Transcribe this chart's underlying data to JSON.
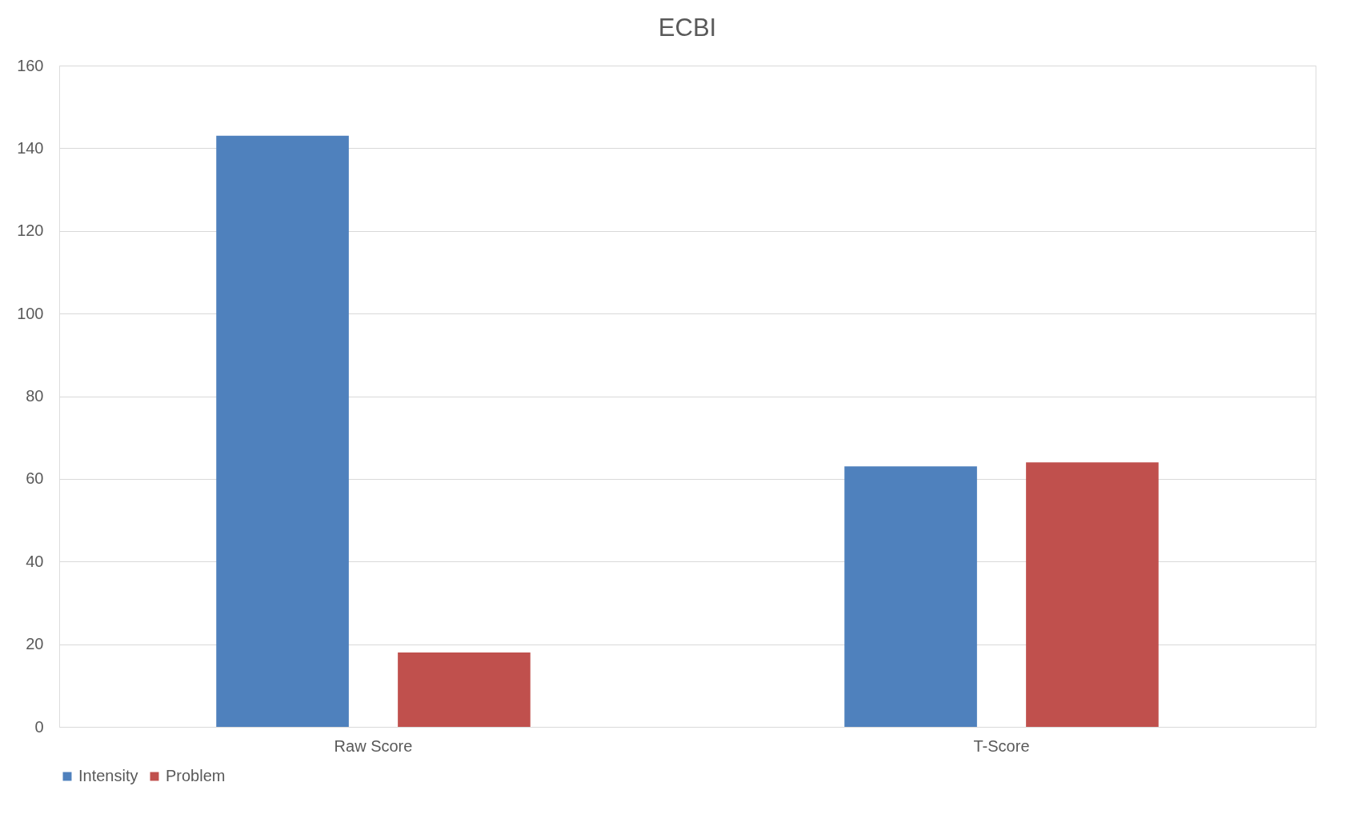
{
  "chart_data": {
    "type": "bar",
    "title": "ECBI",
    "categories": [
      "Raw Score",
      "T-Score"
    ],
    "series": [
      {
        "name": "Intensity",
        "color": "#4f81bd",
        "values": [
          143,
          63
        ]
      },
      {
        "name": "Problem",
        "color": "#c0504d",
        "values": [
          18,
          64
        ]
      }
    ],
    "ylim": [
      0,
      160
    ],
    "yticks": [
      0,
      20,
      40,
      60,
      80,
      100,
      120,
      140,
      160
    ],
    "grid": "y",
    "legend": "bottom"
  }
}
